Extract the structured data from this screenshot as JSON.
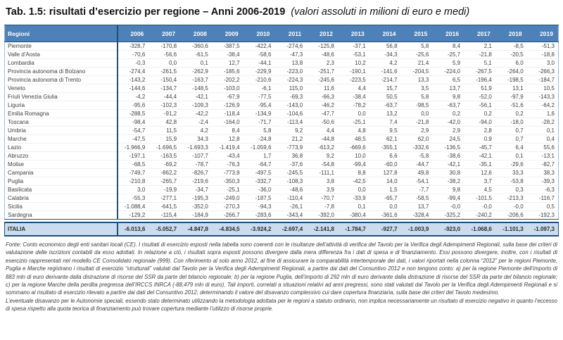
{
  "title": {
    "main": "Tab. 1.5: risultati d’esercizio per regione – Anni 2006-2019",
    "note": "(valori assoluti in milioni di euro e medi)"
  },
  "colors": {
    "header_bg": "#4e81b7",
    "border_dark_blue": "#1f4e79",
    "total_row_bg": "#cbdcee"
  },
  "table": {
    "columns": [
      "Regioni",
      "2006",
      "2007",
      "2008",
      "2009",
      "2010",
      "2011",
      "2012",
      "2013",
      "2014",
      "2015",
      "2016",
      "2017",
      "2018",
      "2019"
    ],
    "rows": [
      {
        "name": "Piemonte",
        "values": [
          "-328,7",
          "-170,8",
          "-360,6",
          "-387,5",
          "-422,4",
          "-274,6",
          "-125,8",
          "-37,1",
          "56,8",
          "5,8",
          "8,4",
          "2,1",
          "-8,5",
          "-51,3"
        ]
      },
      {
        "name": "Valle d'Aosta",
        "values": [
          "-70,6",
          "-56,6",
          "-61,5",
          "-38,4",
          "-58,6",
          "-47,3",
          "-48,6",
          "-53,1",
          "-34,3",
          "-25,6",
          "-25,7",
          "-21,8",
          "-20,5",
          "-18,8"
        ]
      },
      {
        "name": "Lombardia",
        "values": [
          "-0,3",
          "0,0",
          "0,1",
          "12,7",
          "-44,1",
          "13,8",
          "2,3",
          "10,2",
          "4,2",
          "21,4",
          "5,9",
          "5,1",
          "6,0",
          "3,0"
        ]
      },
      {
        "name": "Provincia autonoma di Bolzano",
        "values": [
          "-274,4",
          "-261,5",
          "-262,9",
          "-185,6",
          "-229,9",
          "-223,0",
          "-251,7",
          "-190,1",
          "-141,6",
          "-204,5",
          "-224,0",
          "-267,5",
          "-264,0",
          "-266,3"
        ]
      },
      {
        "name": "Provincia autonoma di Trento",
        "values": [
          "-143,2",
          "-150,4",
          "-163,7",
          "-202,2",
          "-210,6",
          "-224,3",
          "-245,6",
          "-223,5",
          "-214,7",
          "13,3",
          "6,5",
          "-196,4",
          "-198,5",
          "-184,7"
        ]
      },
      {
        "name": "Veneto",
        "values": [
          "-144,6",
          "-134,7",
          "-148,5",
          "-103,0",
          "-6,1",
          "115,0",
          "11,6",
          "4,4",
          "15,7",
          "3,5",
          "13,7",
          "51,9",
          "13,1",
          "10,5"
        ]
      },
      {
        "name": "Friuli Venezia Giulia",
        "values": [
          "-4,2",
          "-44,4",
          "-42,1",
          "-67,9",
          "-77,5",
          "-69,3",
          "-66,3",
          "-38,4",
          "50,5",
          "5,8",
          "9,8",
          "-52,0",
          "-97,9",
          "-143,3"
        ]
      },
      {
        "name": "Liguria",
        "values": [
          "-95,6",
          "-102,3",
          "-109,3",
          "-126,9",
          "-95,4",
          "-143,0",
          "-46,2",
          "-78,2",
          "-63,7",
          "-98,5",
          "-63,7",
          "-56,1",
          "-51,6",
          "-64,2"
        ]
      },
      {
        "name": "Emilia Romagna",
        "values": [
          "-288,5",
          "-91,2",
          "-42,2",
          "-118,4",
          "-134,9",
          "-104,6",
          "-47,7",
          "0,0",
          "13,2",
          "0,0",
          "0,2",
          "0,2",
          "0,2",
          "1,6"
        ]
      },
      {
        "name": "Toscana",
        "values": [
          "-98,4",
          "42,8",
          "-2,4",
          "-164,0",
          "-71,7",
          "-113,4",
          "-50,6",
          "-25,1",
          "7,4",
          "-21,8",
          "-42,0",
          "-94,0",
          "-18,0",
          "-28,2"
        ]
      },
      {
        "name": "Umbria",
        "values": [
          "-54,7",
          "11,5",
          "4,2",
          "8,4",
          "5,8",
          "9,2",
          "4,4",
          "4,8",
          "9,5",
          "2,9",
          "2,9",
          "2,8",
          "0,7",
          "0,1"
        ]
      },
      {
        "name": "Marche",
        "values": [
          "-47,5",
          "15,9",
          "34,3",
          "12,8",
          "-24,8",
          "21,2",
          "-44,8",
          "48,5",
          "62,1",
          "62,0",
          "24,5",
          "0,9",
          "0,7",
          "0,4"
        ]
      },
      {
        "name": "Lazio",
        "values": [
          "-1.966,9",
          "-1.696,5",
          "-1.693,3",
          "-1.419,4",
          "-1.059,6",
          "-773,9",
          "-613,2",
          "-669,6",
          "-355,1",
          "-332,6",
          "-136,5",
          "-45,7",
          "6,4",
          "55,6"
        ]
      },
      {
        "name": "Abruzzo",
        "values": [
          "-197,1",
          "-163,5",
          "-107,7",
          "-43,4",
          "1,7",
          "36,8",
          "9,2",
          "10,0",
          "6,6",
          "-5,8",
          "-38,6",
          "-42,1",
          "0,1",
          "-13,1"
        ]
      },
      {
        "name": "Molise",
        "values": [
          "-68,5",
          "-69,2",
          "-78,7",
          "-76,3",
          "-64,7",
          "-37,6",
          "-54,8",
          "-99,4",
          "-60,0",
          "-44,7",
          "-42,1",
          "-35,1",
          "-29,6",
          "-82,7"
        ]
      },
      {
        "name": "Campania",
        "values": [
          "-749,7",
          "-862,2",
          "-826,7",
          "-773,9",
          "-497,5",
          "-245,5",
          "-111,1",
          "8,8",
          "127,8",
          "49,8",
          "30,8",
          "12,6",
          "33,3",
          "38,3"
        ]
      },
      {
        "name": "Puglia",
        "values": [
          "-210,8",
          "-265,7",
          "-219,6",
          "-350,3",
          "-332,7",
          "-108,3",
          "3,8",
          "-42,5",
          "14,0",
          "-54,1",
          "-38,2",
          "3,7",
          "-53,8",
          "-39,3"
        ]
      },
      {
        "name": "Basilicata",
        "values": [
          "3,0",
          "-19,9",
          "-34,7",
          "-25,1",
          "-36,0",
          "-48,6",
          "3,9",
          "0,0",
          "1,5",
          "-7,7",
          "9,8",
          "4,5",
          "0,3",
          "-6,3"
        ]
      },
      {
        "name": "Calabria",
        "values": [
          "-55,3",
          "-277,1",
          "-195,3",
          "-249,0",
          "-187,5",
          "-110,4",
          "-70,7",
          "-33,9",
          "-65,7",
          "-58,5",
          "-99,4",
          "-101,5",
          "-213,3",
          "-116,7"
        ]
      },
      {
        "name": "Sicilia",
        "values": [
          "-1.088,4",
          "-641,5",
          "-352,0",
          "-270,3",
          "-94,3",
          "-26,1",
          "-7,8",
          "0,1",
          "0,0",
          "13,7",
          "-0,0",
          "-0,0",
          "-0,0",
          "0,5"
        ]
      },
      {
        "name": "Sardegna",
        "values": [
          "-129,2",
          "-115,4",
          "-184,9",
          "-266,7",
          "-283,6",
          "-343,4",
          "-392,0",
          "-380,4",
          "-361,6",
          "-328,4",
          "-325,2",
          "-240,2",
          "-206,6",
          "-192,3"
        ]
      }
    ],
    "total": {
      "name": "ITALIA",
      "values": [
        "-6.013,6",
        "-5.052,7",
        "-4.847,8",
        "-4.834,5",
        "-3.924,2",
        "-2.697,4",
        "-2.141,8",
        "-1.784,7",
        "-927,7",
        "-1.003,9",
        "-923,0",
        "-1.068,6",
        "-1.101,3",
        "-1.097,3"
      ]
    }
  },
  "footnote": {
    "source": "Fonte: Conto economico degli enti sanitari locali (CE). I risultati di esercizio esposti nella tabella sono coerenti con le risultanze dell’attività di verifica del Tavolo per la Verifica degli Adempimenti Regionali, sulla base dei criteri di valutazione delle iscrizioni contabili da esso adottati. In relazione a ciò, i risultati sopra esposti possono divergere dalla mera differenza fra i dati di spesa e di finanziamento. Essi possono divergere, inoltre, con i risultati di esercizio rappresentati nel modello CE Consolidato regionale (999). Con riferimento al solo anno 2012, al fine di assicurare la comparabilità intertemporale dei dati, i valori riportati nella colonna “2012” per le regioni Piemonte, Puglia e Marche registrano i risultati di esercizio “strutturali” valutati dal Tavolo per la Verifica degli Adempimenti Regionali, a partire dai dati del Consuntivo 2012 e non tengono conto: a) per la regione Piemonte dell’importo di 883 mln di euro derivante dalla distrazione di risorse del SSR da parte del bilancio regionale; b) per la regione Puglia, dell’importo di 292 mln di euro derivante dalla distrazione di risorse del SSR da parte del bilancio regionale; c) per la regione Marche della perdita pregressa dell’IRCCS INRCA (-88,479 mln di euro). Tali importi, correlati a situazioni relativi ad anni pregressi, sono stati valutati dal Tavolo per la Verifica degli Adempimenti Regionali e si sommano al risultato di esercizio rilevato a partire dai dati del Consuntivo 2012, determinando il valore del disavanzo complessivo cui dare copertura finanziaria, sulla base dei criteri del Tavolo medesimo.",
    "note": "L’eventuale disavanzo per le Autonomie speciali, essendo stato determinato utilizzando la metodologia adottata per le regioni a statuto ordinario, non implica necessariamente un risultato di esercizio negativo in quanto l’eccesso di spesa rispetto alla quota teorica di finanziamento può trovare copertura mediante l’utilizzo di risorse proprie."
  }
}
